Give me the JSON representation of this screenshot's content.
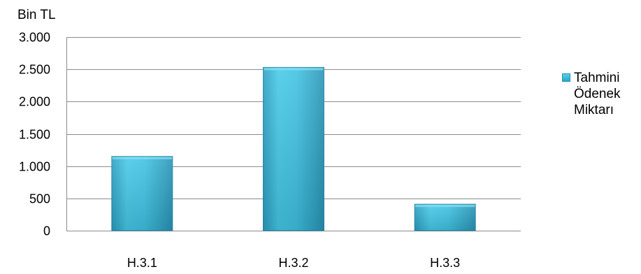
{
  "chart_data": {
    "type": "bar",
    "unit_label": "Bin TL",
    "categories": [
      "H.3.1",
      "H.3.2",
      "H.3.3"
    ],
    "series": [
      {
        "name_lines": [
          "Tahmini",
          "Ödenek",
          "Miktarı"
        ],
        "color": "#35bedf",
        "values": [
          1150,
          2530,
          410
        ]
      }
    ],
    "ylim": [
      0,
      3000
    ],
    "yticks": [
      0,
      500,
      1000,
      1500,
      2000,
      2500,
      3000
    ],
    "ytick_labels": [
      "0",
      "500",
      "1.000",
      "1.500",
      "2.000",
      "2.500",
      "3.000"
    ],
    "grid": true,
    "legend_position": "right"
  }
}
